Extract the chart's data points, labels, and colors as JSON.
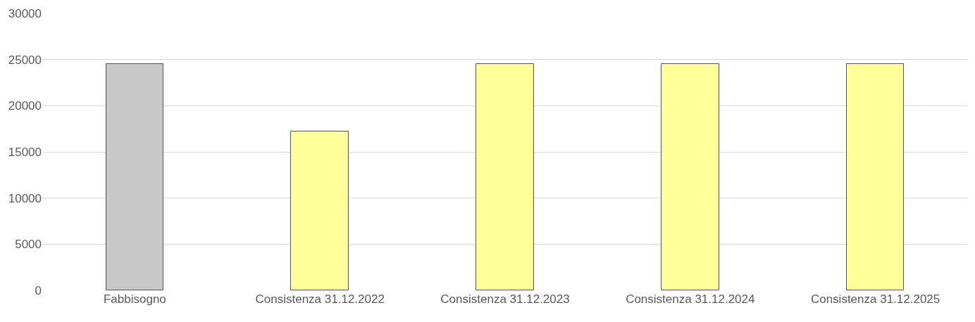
{
  "chart_data": {
    "type": "bar",
    "categories": [
      "Fabbisogno",
      "Consistenza 31.12.2022",
      "Consistenza 31.12.2023",
      "Consistenza 31.12.2024",
      "Consistenza 31.12.2025"
    ],
    "values": [
      24500,
      17200,
      24500,
      24500,
      24500
    ],
    "colors": [
      "#c8c8c8",
      "#ffff99",
      "#ffff99",
      "#ffff99",
      "#ffff99"
    ],
    "ylim": [
      0,
      30000
    ],
    "yticks": [
      0,
      5000,
      10000,
      15000,
      20000,
      25000,
      30000
    ],
    "grid": "y"
  }
}
